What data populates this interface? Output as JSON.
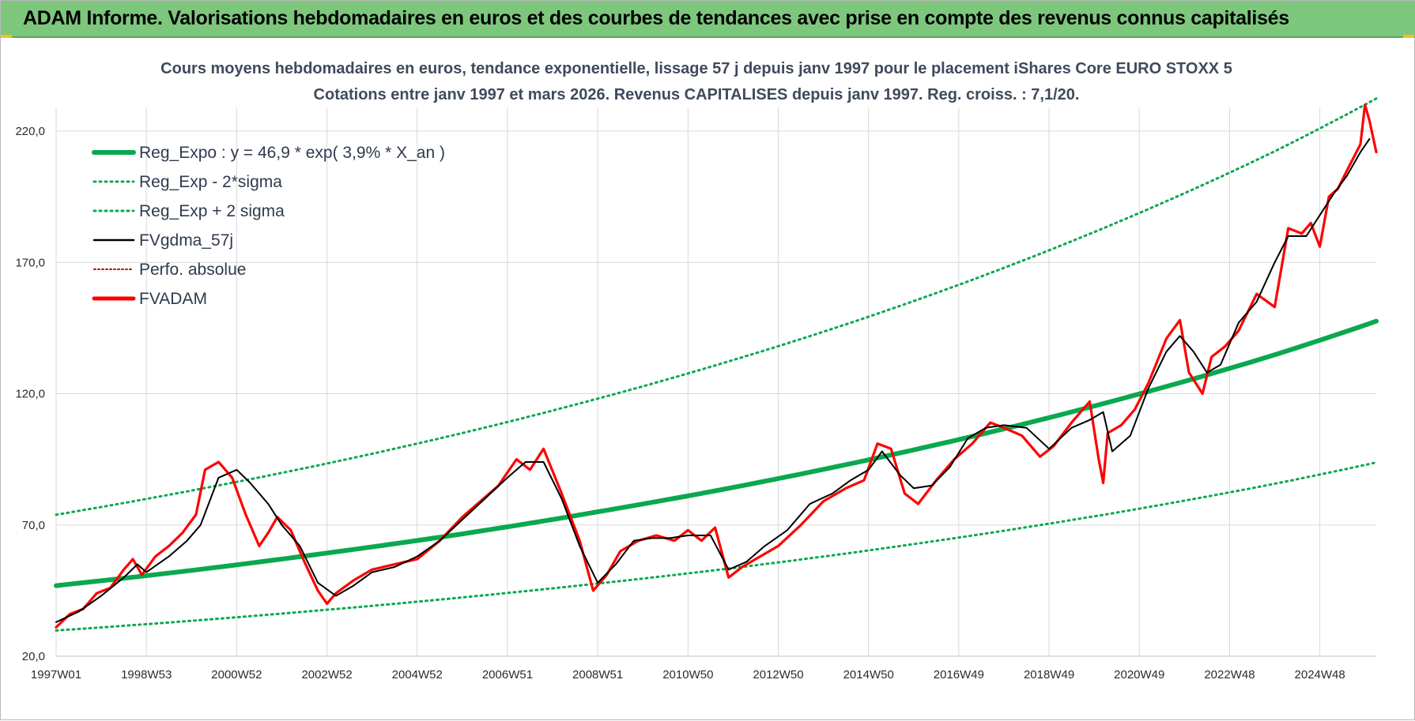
{
  "banner": {
    "title": "ADAM Informe. Valorisations hebdomadaires en euros et des courbes de tendances avec prise en compte des revenus connus capitalisés"
  },
  "colors": {
    "banner_bg": "#7dc77d",
    "reg_green": "#0aa84f",
    "series_black": "#000000",
    "series_red": "#ff0000",
    "perfo_red": "#c00000",
    "grid": "#d9d9d9"
  },
  "chart_data": {
    "type": "line",
    "title": "Cours moyens hebdomadaires en euros, tendance exponentielle, lissage 57 j depuis janv 1997 pour le placement iShares Core EURO STOXX 5",
    "subtitle": "Cotations entre janv 1997 et mars 2026. Revenus CAPITALISES depuis janv 1997. Reg. croiss. : 7,1/20.",
    "x_ticks": [
      "1997W01",
      "1998W53",
      "2000W52",
      "2002W52",
      "2004W52",
      "2006W51",
      "2008W51",
      "2010W50",
      "2012W50",
      "2014W50",
      "2016W49",
      "2018W49",
      "2020W49",
      "2022W48",
      "2024W48"
    ],
    "x_tick_years": [
      1997.0,
      1999.0,
      2001.0,
      2003.0,
      2005.0,
      2007.0,
      2009.0,
      2011.0,
      2013.0,
      2015.0,
      2017.0,
      2019.0,
      2021.0,
      2023.0,
      2025.0
    ],
    "xlim": [
      1997.0,
      2026.25
    ],
    "ylim": [
      20,
      220
    ],
    "y_ticks": [
      "20,0",
      "70,0",
      "120,0",
      "170,0",
      "220,0"
    ],
    "y_tick_values": [
      20,
      70,
      120,
      170,
      220
    ],
    "grid": true,
    "legend_position": "top-left",
    "legend": [
      {
        "label": "Reg_Expo : y = 46,9 * exp( 3,9% *  X_an )",
        "style": "solid-thick",
        "color": "#0aa84f"
      },
      {
        "label": "Reg_Exp - 2*sigma",
        "style": "dotted",
        "color": "#0aa84f"
      },
      {
        "label": "Reg_Exp + 2 sigma",
        "style": "dotted",
        "color": "#0aa84f"
      },
      {
        "label": "FVgdma_57j",
        "style": "solid",
        "color": "#000000"
      },
      {
        "label": "Perfo. absolue",
        "style": "dotted",
        "color": "#c00000"
      },
      {
        "label": "FVADAM",
        "style": "solid-thick",
        "color": "#ff0000"
      }
    ],
    "series": [
      {
        "name": "Reg_Expo : y = 46,9 * exp( 3,9% *  X_an )",
        "x": [
          1997.0,
          2000.0,
          2003.0,
          2006.0,
          2009.0,
          2012.0,
          2015.0,
          2018.0,
          2021.0,
          2024.0,
          2026.25
        ],
        "values": [
          46.9,
          52.7,
          59.3,
          66.6,
          75.0,
          84.3,
          94.8,
          106.6,
          119.9,
          134.8,
          147.6
        ]
      },
      {
        "name": "Reg_Exp - 2*sigma",
        "x": [
          1997.0,
          2000.0,
          2003.0,
          2006.0,
          2009.0,
          2012.0,
          2015.0,
          2018.0,
          2021.0,
          2024.0,
          2026.25
        ],
        "values": [
          29.8,
          33.5,
          37.7,
          42.4,
          47.7,
          53.6,
          60.3,
          67.8,
          76.2,
          85.7,
          93.8
        ]
      },
      {
        "name": "Reg_Exp + 2 sigma",
        "x": [
          1997.0,
          2000.0,
          2003.0,
          2006.0,
          2009.0,
          2012.0,
          2015.0,
          2018.0,
          2021.0,
          2024.0,
          2026.25
        ],
        "values": [
          73.9,
          83.1,
          93.4,
          105.0,
          118.1,
          132.8,
          149.3,
          167.9,
          188.8,
          212.3,
          232.4
        ]
      },
      {
        "name": "FVgdma_57j",
        "x": [
          1997.0,
          1997.5,
          1998.0,
          1998.5,
          1998.8,
          1999.0,
          1999.5,
          1999.9,
          2000.2,
          2000.6,
          2001.0,
          2001.3,
          2001.7,
          2002.0,
          2002.4,
          2002.8,
          2003.2,
          2003.6,
          2004.0,
          2004.5,
          2005.0,
          2005.5,
          2006.0,
          2006.5,
          2007.0,
          2007.4,
          2007.8,
          2008.2,
          2008.6,
          2009.0,
          2009.4,
          2009.8,
          2010.2,
          2010.6,
          2011.0,
          2011.5,
          2011.9,
          2012.3,
          2012.7,
          2013.2,
          2013.7,
          2014.2,
          2014.6,
          2015.0,
          2015.3,
          2015.7,
          2016.0,
          2016.4,
          2016.8,
          2017.2,
          2017.6,
          2018.0,
          2018.5,
          2019.0,
          2019.5,
          2019.9,
          2020.2,
          2020.4,
          2020.8,
          2021.2,
          2021.6,
          2021.9,
          2022.2,
          2022.5,
          2022.8,
          2023.2,
          2023.6,
          2024.0,
          2024.3,
          2024.7,
          2025.0,
          2025.3,
          2025.6,
          2025.9,
          2026.1
        ],
        "values": [
          33,
          37,
          43,
          50,
          55,
          52,
          58,
          64,
          70,
          88,
          91,
          86,
          78,
          70,
          62,
          48,
          43,
          47,
          52,
          54,
          58,
          64,
          72,
          80,
          88,
          94,
          94,
          80,
          62,
          48,
          55,
          64,
          65,
          65,
          66,
          66,
          53,
          56,
          62,
          68,
          78,
          82,
          87,
          91,
          98,
          89,
          84,
          85,
          92,
          103,
          107,
          108,
          107,
          99,
          107,
          110,
          113,
          98,
          104,
          122,
          136,
          142,
          136,
          128,
          131,
          147,
          155,
          170,
          180,
          180,
          188,
          196,
          203,
          212,
          217
        ]
      },
      {
        "name": "FVADAM",
        "x": [
          1997.0,
          1997.3,
          1997.6,
          1997.9,
          1998.2,
          1998.5,
          1998.7,
          1998.9,
          1999.2,
          1999.5,
          1999.8,
          2000.1,
          2000.3,
          2000.6,
          2000.9,
          2001.2,
          2001.5,
          2001.7,
          2001.9,
          2002.2,
          2002.5,
          2002.8,
          2003.0,
          2003.2,
          2003.6,
          2004.0,
          2004.5,
          2005.0,
          2005.5,
          2006.0,
          2006.4,
          2006.8,
          2007.2,
          2007.5,
          2007.8,
          2008.2,
          2008.6,
          2008.9,
          2009.2,
          2009.5,
          2009.9,
          2010.3,
          2010.7,
          2011.0,
          2011.3,
          2011.6,
          2011.9,
          2012.2,
          2012.6,
          2013.0,
          2013.5,
          2014.0,
          2014.5,
          2014.9,
          2015.2,
          2015.5,
          2015.8,
          2016.1,
          2016.5,
          2016.9,
          2017.3,
          2017.7,
          2018.0,
          2018.4,
          2018.8,
          2019.1,
          2019.5,
          2019.9,
          2020.1,
          2020.2,
          2020.3,
          2020.6,
          2020.9,
          2021.2,
          2021.6,
          2021.9,
          2022.1,
          2022.4,
          2022.6,
          2022.9,
          2023.2,
          2023.6,
          2024.0,
          2024.3,
          2024.6,
          2024.8,
          2025.0,
          2025.2,
          2025.4,
          2025.6,
          2025.9,
          2026.0,
          2026.1,
          2026.25
        ],
        "values": [
          31,
          36,
          38,
          44,
          46,
          53,
          57,
          51,
          58,
          62,
          67,
          74,
          91,
          94,
          88,
          74,
          62,
          67,
          73,
          68,
          56,
          45,
          40,
          44,
          49,
          53,
          55,
          57,
          64,
          73,
          79,
          85,
          95,
          91,
          99,
          82,
          64,
          45,
          51,
          60,
          64,
          66,
          64,
          68,
          64,
          69,
          50,
          54,
          58,
          62,
          70,
          79,
          84,
          87,
          101,
          99,
          82,
          78,
          87,
          95,
          101,
          109,
          107,
          104,
          96,
          100,
          109,
          117,
          95,
          86,
          105,
          108,
          114,
          124,
          141,
          148,
          128,
          120,
          134,
          138,
          144,
          158,
          153,
          183,
          181,
          185,
          176,
          195,
          198,
          205,
          215,
          230,
          224,
          212
        ]
      }
    ]
  }
}
